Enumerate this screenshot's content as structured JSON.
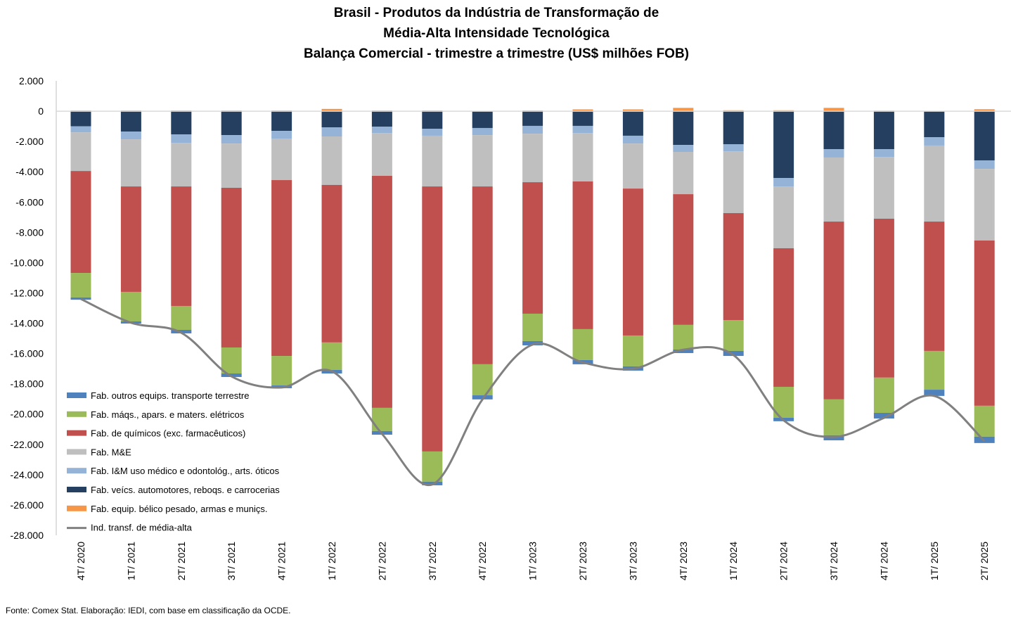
{
  "chart_data": {
    "type": "bar",
    "stacked": true,
    "title": [
      "Brasil - Produtos da Indústria de Transformação de",
      "Média-Alta Intensidade Tecnológica",
      "Balança Comercial - trimestre a trimestre (US$ milhões FOB)"
    ],
    "xlabel": "",
    "ylabel": "",
    "ylim": [
      -28000,
      2000
    ],
    "yticks": [
      2000,
      0,
      -2000,
      -4000,
      -6000,
      -8000,
      -10000,
      -12000,
      -14000,
      -16000,
      -18000,
      -20000,
      -22000,
      -24000,
      -26000,
      -28000
    ],
    "ytick_labels": [
      "2.000",
      "0",
      "-2.000",
      "-4.000",
      "-6.000",
      "-8.000",
      "-10.000",
      "-12.000",
      "-14.000",
      "-16.000",
      "-18.000",
      "-20.000",
      "-22.000",
      "-24.000",
      "-26.000",
      "-28.000"
    ],
    "grid": false,
    "legend_position": "bottom-left",
    "categories": [
      "4T/ 2020",
      "1T/ 2021",
      "2T/ 2021",
      "3T/ 2021",
      "4T/ 2021",
      "1T/ 2022",
      "2T/ 2022",
      "3T/ 2022",
      "4T/ 2022",
      "1T/ 2023",
      "2T/ 2023",
      "3T/ 2023",
      "4T/ 2023",
      "1T/ 2024",
      "2T/ 2024",
      "3T/ 2024",
      "4T/ 2024",
      "1T/ 2025",
      "2T/ 2025"
    ],
    "series": [
      {
        "name": "Fab. veícs. automotores, reboqs. e carrocerias",
        "color": "#243F60",
        "values": [
          -1000,
          -1350,
          -1530,
          -1580,
          -1300,
          -1070,
          -1020,
          -1160,
          -1110,
          -970,
          -970,
          -1620,
          -2230,
          -2180,
          -4410,
          -2510,
          -2510,
          -1720,
          -3250
        ]
      },
      {
        "name": "Fab. I&M uso médico e odontológ., arts. óticos",
        "color": "#95B3D7",
        "values": [
          -400,
          -510,
          -560,
          -560,
          -510,
          -600,
          -420,
          -460,
          -470,
          -520,
          -470,
          -520,
          -460,
          -470,
          -560,
          -550,
          -510,
          -550,
          -560
        ]
      },
      {
        "name": "Fab. M&E",
        "color": "#BFBFBF",
        "values": [
          -2550,
          -3110,
          -2880,
          -2920,
          -2740,
          -3200,
          -2830,
          -3350,
          -3390,
          -3200,
          -3200,
          -2970,
          -2790,
          -4080,
          -4080,
          -4230,
          -4080,
          -5020,
          -4730
        ]
      },
      {
        "name": "Fab. de químicos (exc. farmacêuticos)",
        "color": "#C0504D",
        "values": [
          -6730,
          -6960,
          -7890,
          -10540,
          -11610,
          -10400,
          -15320,
          -17500,
          -11740,
          -8680,
          -9750,
          -9700,
          -8630,
          -7060,
          -9150,
          -11740,
          -10490,
          -8540,
          -10910
        ]
      },
      {
        "name": "Fab. máqs., apars. e maters. elétricos",
        "color": "#9BBB59",
        "values": [
          -1620,
          -1950,
          -1580,
          -1720,
          -1950,
          -1810,
          -1530,
          -1990,
          -2050,
          -1810,
          -2040,
          -2040,
          -1630,
          -2040,
          -2040,
          -2370,
          -2330,
          -2560,
          -2040
        ]
      },
      {
        "name": "Fab. outros equips. transporte terrestre",
        "color": "#4F81BD",
        "values": [
          -150,
          -140,
          -230,
          -230,
          -180,
          -240,
          -240,
          -240,
          -270,
          -280,
          -280,
          -280,
          -230,
          -330,
          -230,
          -330,
          -370,
          -410,
          -420
        ]
      },
      {
        "name": "Fab. equip. bélico pesado, armas e muniçs.",
        "color": "#F79646",
        "values": [
          50,
          50,
          50,
          50,
          50,
          150,
          50,
          50,
          0,
          50,
          120,
          120,
          220,
          60,
          60,
          220,
          40,
          0,
          130
        ]
      }
    ],
    "line_series": {
      "name": "Ind. transf. de média-alta",
      "color": "#808080",
      "values": [
        -12400,
        -13970,
        -14630,
        -17510,
        -18240,
        -17170,
        -21310,
        -24650,
        -19030,
        -15410,
        -16590,
        -17010,
        -15750,
        -16100,
        -20410,
        -21510,
        -20250,
        -18800,
        -21780
      ]
    },
    "legend_order": [
      5,
      4,
      3,
      2,
      1,
      0,
      6
    ]
  },
  "legend_line_label": "Ind. transf. de média-alta",
  "source": "Fonte:  Comex Stat. Elaboração: IEDI, com base em classificação da OCDE."
}
